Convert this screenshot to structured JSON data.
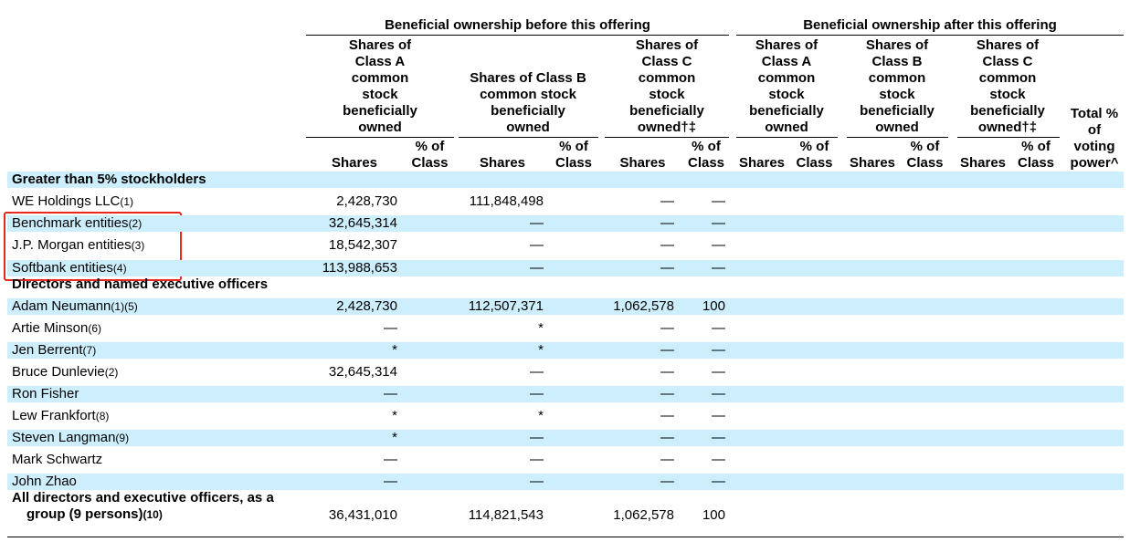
{
  "header": {
    "before": "Beneficial ownership before this offering",
    "after": "Beneficial ownership after this offering",
    "columns": [
      "Shares of\nClass A\ncommon\nstock\nbeneficially\nowned",
      "Shares of Class B\ncommon stock\nbeneficially\nowned",
      "Shares of\nClass C\ncommon\nstock\nbeneficially\nowned†‡",
      "Shares of\nClass A\ncommon\nstock\nbeneficially\nowned",
      "Shares of\nClass B\ncommon\nstock\nbeneficially\nowned",
      "Shares of\nClass C\ncommon\nstock\nbeneficially\nowned†‡",
      "Total %\nof\nvoting\npower^"
    ],
    "shares": "Shares",
    "percent": "% of\nClass"
  },
  "sections": [
    {
      "title": "Greater than 5% stockholders",
      "rows": [
        {
          "name": "WE Holdings LLC",
          "note": "(1)",
          "cells": [
            "2,428,730",
            null,
            "111,848,498",
            null,
            "—",
            "—"
          ]
        },
        {
          "name": "Benchmark entities",
          "note": "(2)",
          "cells": [
            "32,645,314",
            null,
            "—",
            null,
            "—",
            "—"
          ]
        },
        {
          "name": "J.P. Morgan entities",
          "note": "(3)",
          "cells": [
            "18,542,307",
            null,
            "—",
            null,
            "—",
            "—"
          ]
        },
        {
          "name": "Softbank entities",
          "note": "(4)",
          "cells": [
            "113,988,653",
            null,
            "—",
            null,
            "—",
            "—"
          ]
        }
      ]
    },
    {
      "title": "Directors and named executive officers",
      "rows": [
        {
          "name": "Adam Neumann",
          "note": "(1)(5)",
          "cells": [
            "2,428,730",
            null,
            "112,507,371",
            null,
            "1,062,578",
            "100"
          ]
        },
        {
          "name": "Artie Minson",
          "note": "(6)",
          "cells": [
            "—",
            null,
            "*",
            null,
            "—",
            "—"
          ]
        },
        {
          "name": "Jen Berrent",
          "note": "(7)",
          "cells": [
            "*",
            null,
            "*",
            null,
            "—",
            "—"
          ]
        },
        {
          "name": "Bruce Dunlevie",
          "note": "(2)",
          "cells": [
            "32,645,314",
            null,
            "—",
            null,
            "—",
            "—"
          ]
        },
        {
          "name": "Ron Fisher",
          "note": null,
          "cells": [
            "—",
            null,
            "—",
            null,
            "—",
            "—"
          ]
        },
        {
          "name": "Lew Frankfort",
          "note": "(8)",
          "cells": [
            "*",
            null,
            "*",
            null,
            "—",
            "—"
          ]
        },
        {
          "name": "Steven Langman",
          "note": "(9)",
          "cells": [
            "*",
            null,
            "—",
            null,
            "—",
            "—"
          ]
        },
        {
          "name": "Mark Schwartz",
          "note": null,
          "cells": [
            "—",
            null,
            "—",
            null,
            "—",
            "—"
          ]
        },
        {
          "name": "John Zhao",
          "note": null,
          "cells": [
            "—",
            null,
            "—",
            null,
            "—",
            "—"
          ]
        }
      ]
    }
  ],
  "total": {
    "name": "All directors and executive officers, as a group (9 persons)",
    "note": "(10)",
    "cells": [
      "36,431,010",
      null,
      "114,821,543",
      null,
      "1,062,578",
      "100"
    ]
  }
}
